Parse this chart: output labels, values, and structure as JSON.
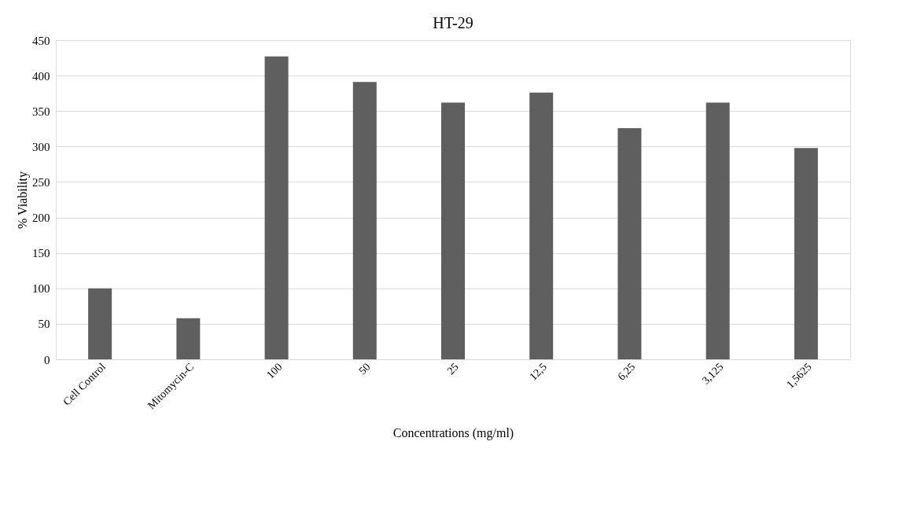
{
  "chart_data": {
    "type": "bar",
    "title": "HT-29",
    "xlabel": "Concentrations  (mg/ml)",
    "ylabel": "% Viability",
    "categories": [
      "Cell Control",
      "Mitomycin-C",
      "100",
      "50",
      "25",
      "12,5",
      "6,25",
      "3,125",
      "1,5625"
    ],
    "values": [
      100,
      58,
      427,
      391,
      362,
      376,
      326,
      362,
      298
    ],
    "color": "#5f5f5f",
    "ylim": [
      0,
      450
    ],
    "yticks": [
      0,
      50,
      100,
      150,
      200,
      250,
      300,
      350,
      400,
      450
    ],
    "grid": "y"
  }
}
